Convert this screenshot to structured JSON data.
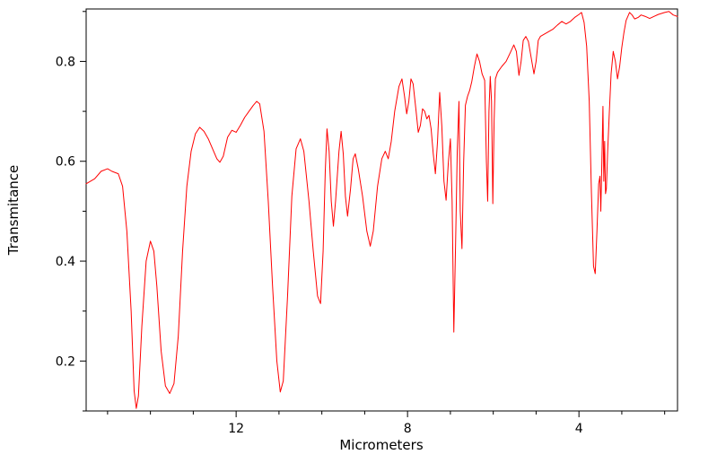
{
  "figure": {
    "background": "#ffffff",
    "axis_color": "#000000",
    "line_color": "#ff0000"
  },
  "chart_data": {
    "type": "line",
    "title": "",
    "xlabel": "Micrometers",
    "ylabel": "Transmitance",
    "legend": "none",
    "grid": false,
    "x_axis": {
      "left_value": 15.5,
      "right_value": 1.7,
      "reversed": true,
      "major_ticks": [
        12,
        8,
        4
      ],
      "minor_ticks": [
        15,
        14,
        13,
        11,
        10,
        9,
        7,
        6,
        5,
        3,
        2
      ]
    },
    "y_axis": {
      "min": 0.1,
      "max": 0.905,
      "major_ticks": [
        0.2,
        0.4,
        0.6,
        0.8
      ],
      "minor_ticks": [
        0.1,
        0.3,
        0.5,
        0.7,
        0.9
      ]
    },
    "series": [
      {
        "name": "ir-transmittance-spectrum",
        "color": "#ff0000",
        "points": [
          [
            15.5,
            0.555
          ],
          [
            15.3,
            0.565
          ],
          [
            15.15,
            0.58
          ],
          [
            15.0,
            0.585
          ],
          [
            14.9,
            0.58
          ],
          [
            14.75,
            0.575
          ],
          [
            14.65,
            0.55
          ],
          [
            14.55,
            0.46
          ],
          [
            14.45,
            0.3
          ],
          [
            14.38,
            0.14
          ],
          [
            14.33,
            0.105
          ],
          [
            14.28,
            0.13
          ],
          [
            14.2,
            0.27
          ],
          [
            14.1,
            0.4
          ],
          [
            14.0,
            0.44
          ],
          [
            13.92,
            0.42
          ],
          [
            13.85,
            0.35
          ],
          [
            13.75,
            0.22
          ],
          [
            13.65,
            0.15
          ],
          [
            13.55,
            0.135
          ],
          [
            13.45,
            0.155
          ],
          [
            13.35,
            0.25
          ],
          [
            13.25,
            0.42
          ],
          [
            13.15,
            0.55
          ],
          [
            13.05,
            0.62
          ],
          [
            12.95,
            0.655
          ],
          [
            12.85,
            0.668
          ],
          [
            12.75,
            0.66
          ],
          [
            12.65,
            0.645
          ],
          [
            12.55,
            0.625
          ],
          [
            12.45,
            0.605
          ],
          [
            12.38,
            0.598
          ],
          [
            12.3,
            0.61
          ],
          [
            12.2,
            0.648
          ],
          [
            12.1,
            0.662
          ],
          [
            12.0,
            0.658
          ],
          [
            11.9,
            0.672
          ],
          [
            11.8,
            0.688
          ],
          [
            11.7,
            0.7
          ],
          [
            11.6,
            0.712
          ],
          [
            11.52,
            0.72
          ],
          [
            11.45,
            0.715
          ],
          [
            11.35,
            0.66
          ],
          [
            11.25,
            0.52
          ],
          [
            11.15,
            0.35
          ],
          [
            11.05,
            0.2
          ],
          [
            10.97,
            0.138
          ],
          [
            10.9,
            0.16
          ],
          [
            10.8,
            0.33
          ],
          [
            10.7,
            0.53
          ],
          [
            10.6,
            0.625
          ],
          [
            10.5,
            0.645
          ],
          [
            10.42,
            0.62
          ],
          [
            10.3,
            0.52
          ],
          [
            10.2,
            0.42
          ],
          [
            10.1,
            0.33
          ],
          [
            10.03,
            0.315
          ],
          [
            9.97,
            0.42
          ],
          [
            9.92,
            0.58
          ],
          [
            9.88,
            0.665
          ],
          [
            9.83,
            0.62
          ],
          [
            9.78,
            0.52
          ],
          [
            9.73,
            0.47
          ],
          [
            9.68,
            0.52
          ],
          [
            9.6,
            0.62
          ],
          [
            9.55,
            0.66
          ],
          [
            9.5,
            0.615
          ],
          [
            9.45,
            0.53
          ],
          [
            9.4,
            0.49
          ],
          [
            9.33,
            0.545
          ],
          [
            9.27,
            0.605
          ],
          [
            9.22,
            0.615
          ],
          [
            9.15,
            0.585
          ],
          [
            9.05,
            0.53
          ],
          [
            8.95,
            0.46
          ],
          [
            8.87,
            0.43
          ],
          [
            8.8,
            0.46
          ],
          [
            8.7,
            0.55
          ],
          [
            8.6,
            0.605
          ],
          [
            8.52,
            0.62
          ],
          [
            8.45,
            0.605
          ],
          [
            8.38,
            0.64
          ],
          [
            8.3,
            0.7
          ],
          [
            8.2,
            0.75
          ],
          [
            8.13,
            0.765
          ],
          [
            8.07,
            0.73
          ],
          [
            8.02,
            0.695
          ],
          [
            7.97,
            0.72
          ],
          [
            7.92,
            0.765
          ],
          [
            7.87,
            0.755
          ],
          [
            7.8,
            0.7
          ],
          [
            7.75,
            0.658
          ],
          [
            7.7,
            0.672
          ],
          [
            7.65,
            0.705
          ],
          [
            7.6,
            0.7
          ],
          [
            7.55,
            0.685
          ],
          [
            7.5,
            0.692
          ],
          [
            7.45,
            0.665
          ],
          [
            7.4,
            0.615
          ],
          [
            7.35,
            0.575
          ],
          [
            7.3,
            0.64
          ],
          [
            7.25,
            0.738
          ],
          [
            7.2,
            0.67
          ],
          [
            7.15,
            0.56
          ],
          [
            7.1,
            0.522
          ],
          [
            7.05,
            0.595
          ],
          [
            7.0,
            0.645
          ],
          [
            6.96,
            0.52
          ],
          [
            6.92,
            0.258
          ],
          [
            6.88,
            0.43
          ],
          [
            6.84,
            0.62
          ],
          [
            6.8,
            0.72
          ],
          [
            6.77,
            0.5
          ],
          [
            6.73,
            0.425
          ],
          [
            6.69,
            0.6
          ],
          [
            6.65,
            0.712
          ],
          [
            6.6,
            0.73
          ],
          [
            6.55,
            0.742
          ],
          [
            6.5,
            0.76
          ],
          [
            6.44,
            0.79
          ],
          [
            6.38,
            0.815
          ],
          [
            6.32,
            0.8
          ],
          [
            6.26,
            0.775
          ],
          [
            6.2,
            0.762
          ],
          [
            6.16,
            0.6
          ],
          [
            6.13,
            0.52
          ],
          [
            6.1,
            0.7
          ],
          [
            6.07,
            0.77
          ],
          [
            6.04,
            0.72
          ],
          [
            6.01,
            0.515
          ],
          [
            5.98,
            0.68
          ],
          [
            5.95,
            0.765
          ],
          [
            5.9,
            0.778
          ],
          [
            5.8,
            0.79
          ],
          [
            5.7,
            0.8
          ],
          [
            5.6,
            0.818
          ],
          [
            5.52,
            0.833
          ],
          [
            5.46,
            0.82
          ],
          [
            5.4,
            0.772
          ],
          [
            5.35,
            0.8
          ],
          [
            5.3,
            0.842
          ],
          [
            5.24,
            0.85
          ],
          [
            5.18,
            0.84
          ],
          [
            5.1,
            0.8
          ],
          [
            5.05,
            0.775
          ],
          [
            5.0,
            0.8
          ],
          [
            4.95,
            0.842
          ],
          [
            4.9,
            0.85
          ],
          [
            4.8,
            0.855
          ],
          [
            4.7,
            0.86
          ],
          [
            4.6,
            0.865
          ],
          [
            4.5,
            0.873
          ],
          [
            4.4,
            0.88
          ],
          [
            4.3,
            0.875
          ],
          [
            4.2,
            0.88
          ],
          [
            4.1,
            0.888
          ],
          [
            4.0,
            0.894
          ],
          [
            3.94,
            0.898
          ],
          [
            3.88,
            0.878
          ],
          [
            3.82,
            0.83
          ],
          [
            3.76,
            0.72
          ],
          [
            3.71,
            0.54
          ],
          [
            3.66,
            0.39
          ],
          [
            3.62,
            0.375
          ],
          [
            3.58,
            0.46
          ],
          [
            3.54,
            0.555
          ],
          [
            3.51,
            0.57
          ],
          [
            3.49,
            0.5
          ],
          [
            3.46,
            0.62
          ],
          [
            3.44,
            0.71
          ],
          [
            3.42,
            0.56
          ],
          [
            3.4,
            0.64
          ],
          [
            3.38,
            0.535
          ],
          [
            3.36,
            0.545
          ],
          [
            3.33,
            0.62
          ],
          [
            3.29,
            0.7
          ],
          [
            3.25,
            0.775
          ],
          [
            3.2,
            0.82
          ],
          [
            3.15,
            0.8
          ],
          [
            3.1,
            0.765
          ],
          [
            3.05,
            0.79
          ],
          [
            3.0,
            0.828
          ],
          [
            2.95,
            0.858
          ],
          [
            2.9,
            0.882
          ],
          [
            2.82,
            0.898
          ],
          [
            2.76,
            0.893
          ],
          [
            2.7,
            0.885
          ],
          [
            2.62,
            0.888
          ],
          [
            2.55,
            0.893
          ],
          [
            2.45,
            0.89
          ],
          [
            2.35,
            0.886
          ],
          [
            2.25,
            0.89
          ],
          [
            2.15,
            0.894
          ],
          [
            2.0,
            0.898
          ],
          [
            1.9,
            0.9
          ],
          [
            1.8,
            0.893
          ],
          [
            1.7,
            0.89
          ]
        ]
      }
    ]
  }
}
